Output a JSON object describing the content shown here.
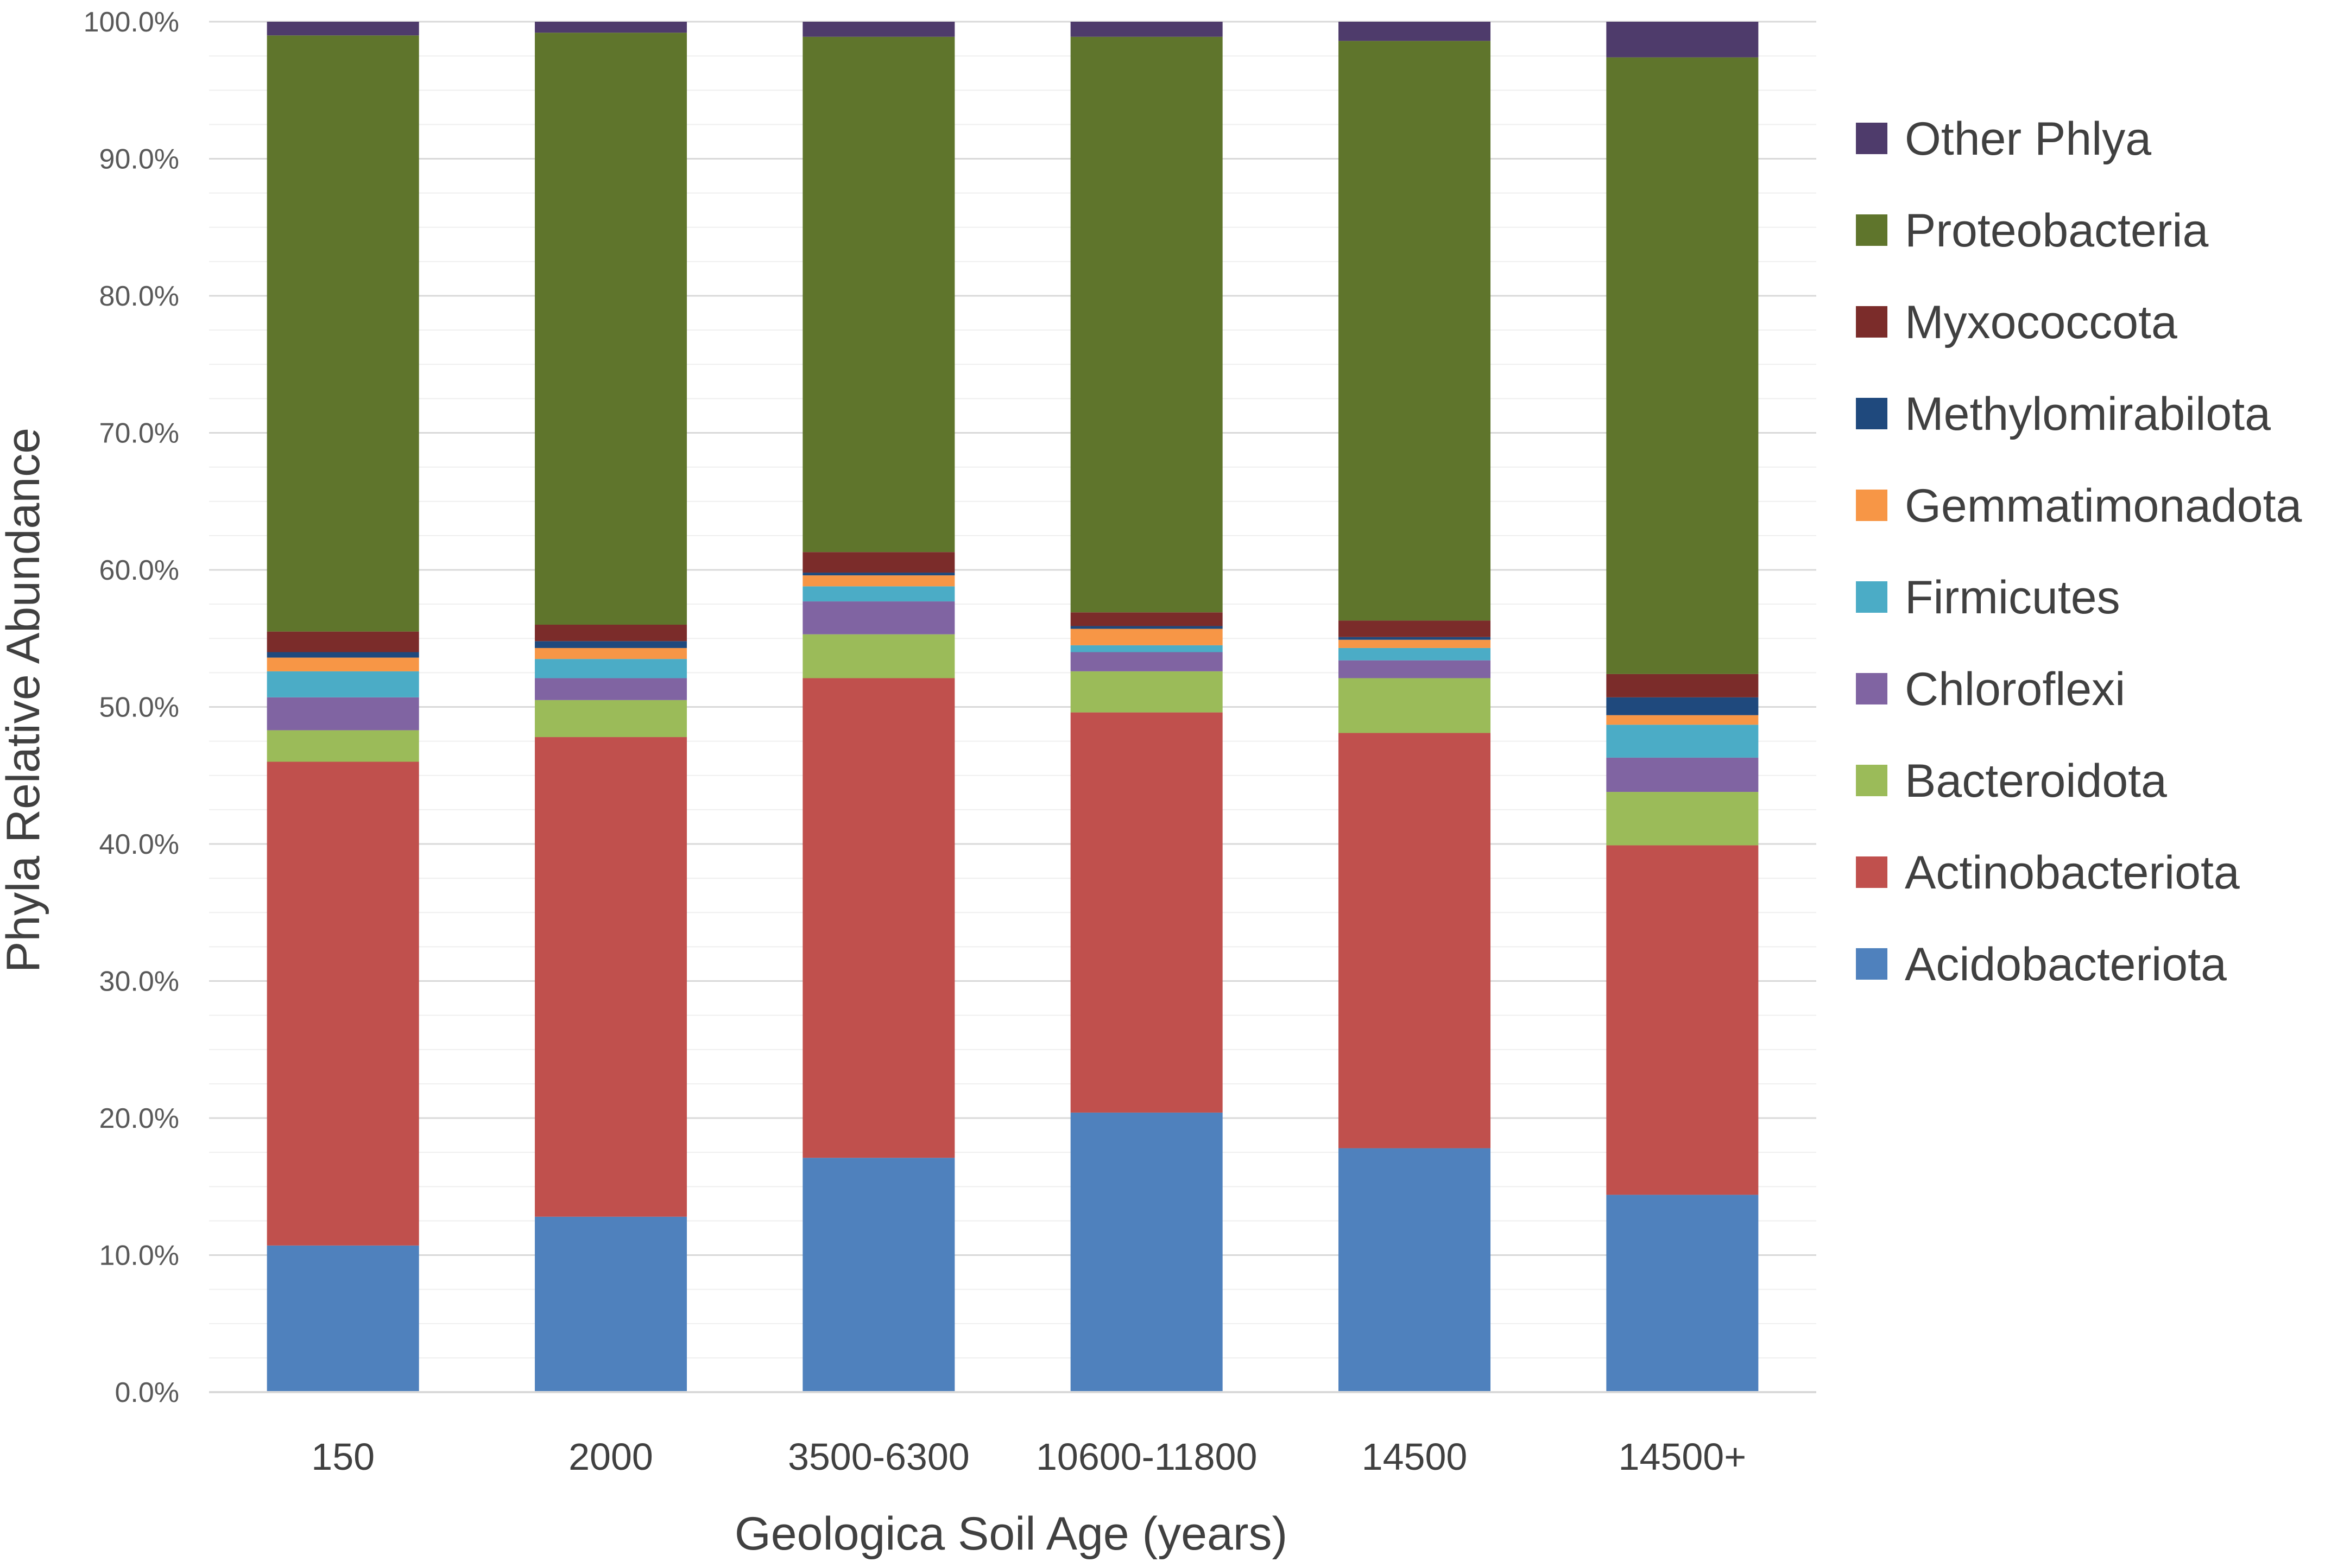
{
  "chart_data": {
    "type": "bar",
    "stacked": true,
    "xlabel": "Geologica Soil Age (years)",
    "ylabel": "Phyla Relative Abundance",
    "ylim": [
      0,
      100
    ],
    "yticks": [
      "0.0%",
      "10.0%",
      "20.0%",
      "30.0%",
      "40.0%",
      "50.0%",
      "60.0%",
      "70.0%",
      "80.0%",
      "90.0%",
      "100.0%"
    ],
    "grid": true,
    "legend_position": "right",
    "categories": [
      "150",
      "2000",
      "3500-6300",
      "10600-11800",
      "14500",
      "14500+"
    ],
    "series": [
      {
        "name": "Acidobacteriota",
        "color": "#4f81bd",
        "values": [
          10.7,
          12.8,
          17.1,
          20.4,
          17.8,
          14.4
        ]
      },
      {
        "name": "Actinobacteriota",
        "color": "#c0504d",
        "values": [
          35.3,
          35.0,
          35.0,
          29.2,
          30.3,
          25.5
        ]
      },
      {
        "name": "Bacteroidota",
        "color": "#9bbb59",
        "values": [
          2.3,
          2.7,
          3.2,
          3.0,
          4.0,
          3.9
        ]
      },
      {
        "name": "Chloroflexi",
        "color": "#8064a2",
        "values": [
          2.4,
          1.6,
          2.4,
          1.4,
          1.3,
          2.5
        ]
      },
      {
        "name": "Firmicutes",
        "color": "#4bacc6",
        "values": [
          1.9,
          1.4,
          1.1,
          0.5,
          0.9,
          2.4
        ]
      },
      {
        "name": "Gemmatimonadota",
        "color": "#f79646",
        "values": [
          1.0,
          0.8,
          0.8,
          1.2,
          0.6,
          0.7
        ]
      },
      {
        "name": "Methylomirabilota",
        "color": "#1f497d",
        "values": [
          0.4,
          0.5,
          0.2,
          0.2,
          0.2,
          1.3
        ]
      },
      {
        "name": "Myxococcota",
        "color": "#7b2c2a",
        "values": [
          1.5,
          1.2,
          1.5,
          1.0,
          1.2,
          1.7
        ]
      },
      {
        "name": "Proteobacteria",
        "color": "#5f752c",
        "values": [
          43.5,
          43.2,
          37.6,
          42.0,
          42.3,
          45.0
        ]
      },
      {
        "name": "Other Phlya",
        "color": "#4e3b6b",
        "values": [
          1.0,
          0.8,
          1.1,
          1.1,
          1.4,
          2.6
        ]
      }
    ],
    "legend_order": [
      "Other Phlya",
      "Proteobacteria",
      "Myxococcota",
      "Methylomirabilota",
      "Gemmatimonadota",
      "Firmicutes",
      "Chloroflexi",
      "Bacteroidota",
      "Actinobacteriota",
      "Acidobacteriota"
    ]
  }
}
